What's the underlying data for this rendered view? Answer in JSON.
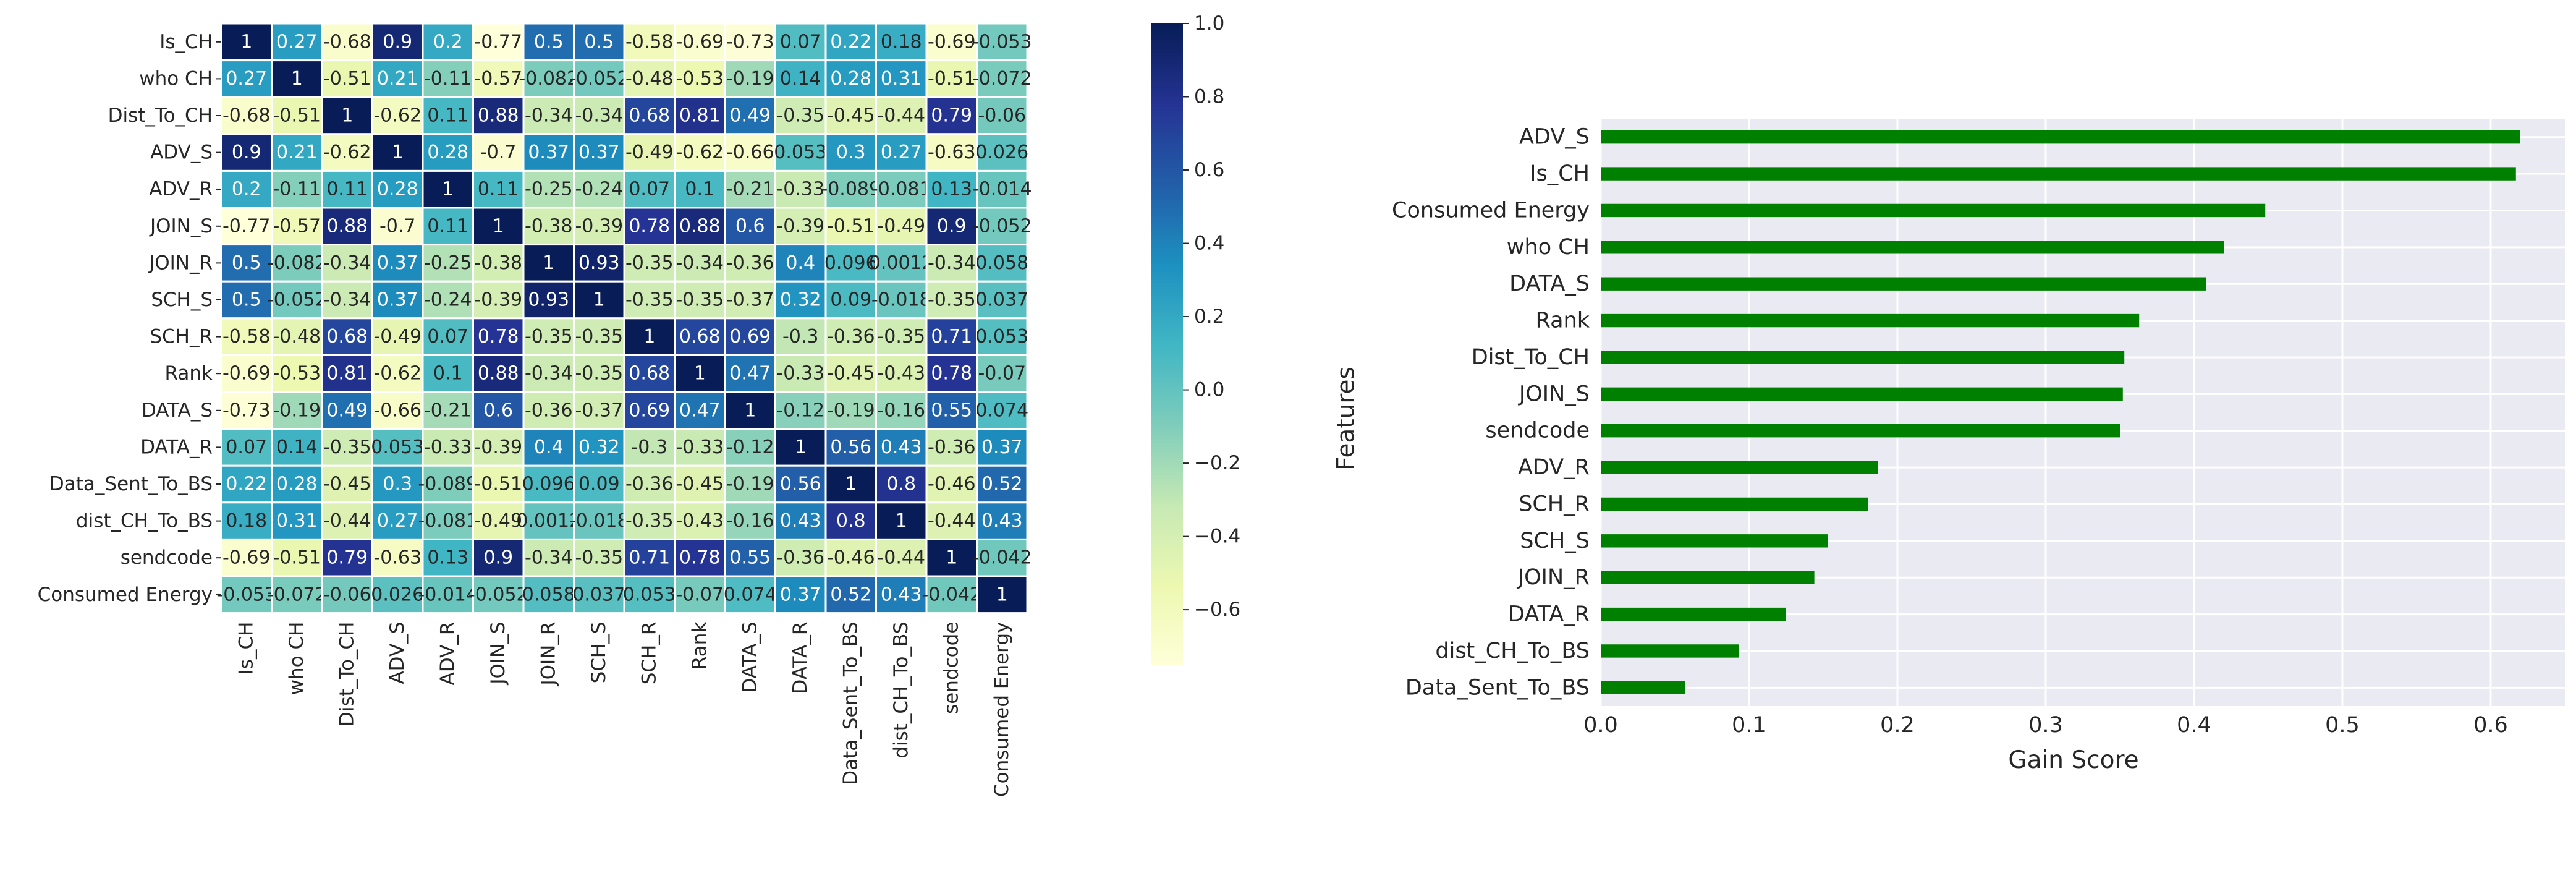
{
  "chart_data": [
    {
      "type": "heatmap",
      "title": "",
      "colormap": "YlGnBu",
      "labels": [
        "Is_CH",
        "who CH",
        "Dist_To_CH",
        "ADV_S",
        "ADV_R",
        "JOIN_S",
        "JOIN_R",
        "SCH_S",
        "SCH_R",
        "Rank",
        "DATA_S",
        "DATA_R",
        "Data_Sent_To_BS",
        "dist_CH_To_BS",
        "sendcode",
        "Consumed Energy"
      ],
      "values": [
        [
          1,
          0.27,
          -0.68,
          0.9,
          0.2,
          -0.77,
          0.5,
          0.5,
          -0.58,
          -0.69,
          -0.73,
          0.07,
          0.22,
          0.18,
          -0.69,
          -0.053
        ],
        [
          0.27,
          1,
          -0.51,
          0.21,
          -0.11,
          -0.57,
          -0.082,
          -0.052,
          -0.48,
          -0.53,
          -0.19,
          0.14,
          0.28,
          0.31,
          -0.51,
          -0.072
        ],
        [
          -0.68,
          -0.51,
          1,
          -0.62,
          0.11,
          0.88,
          -0.34,
          -0.34,
          0.68,
          0.81,
          0.49,
          -0.35,
          -0.45,
          -0.44,
          0.79,
          -0.06
        ],
        [
          0.9,
          0.21,
          -0.62,
          1,
          0.28,
          -0.7,
          0.37,
          0.37,
          -0.49,
          -0.62,
          -0.66,
          0.053,
          0.3,
          0.27,
          -0.63,
          0.026
        ],
        [
          0.2,
          -0.11,
          0.11,
          0.28,
          1,
          0.11,
          -0.25,
          -0.24,
          0.07,
          0.1,
          -0.21,
          -0.33,
          -0.089,
          -0.081,
          0.13,
          -0.014
        ],
        [
          -0.77,
          -0.57,
          0.88,
          -0.7,
          0.11,
          1,
          -0.38,
          -0.39,
          0.78,
          0.88,
          0.6,
          -0.39,
          -0.51,
          -0.49,
          0.9,
          -0.052
        ],
        [
          0.5,
          -0.082,
          -0.34,
          0.37,
          -0.25,
          -0.38,
          1,
          0.93,
          -0.35,
          -0.34,
          -0.36,
          0.4,
          0.096,
          0.0012,
          -0.34,
          0.058
        ],
        [
          0.5,
          -0.052,
          -0.34,
          0.37,
          -0.24,
          -0.39,
          0.93,
          1,
          -0.35,
          -0.35,
          -0.37,
          0.32,
          0.09,
          -0.018,
          -0.35,
          0.037
        ],
        [
          -0.58,
          -0.48,
          0.68,
          -0.49,
          0.07,
          0.78,
          -0.35,
          -0.35,
          1,
          0.68,
          0.69,
          -0.3,
          -0.36,
          -0.35,
          0.71,
          0.053
        ],
        [
          -0.69,
          -0.53,
          0.81,
          -0.62,
          0.1,
          0.88,
          -0.34,
          -0.35,
          0.68,
          1,
          0.47,
          -0.33,
          -0.45,
          -0.43,
          0.78,
          -0.07
        ],
        [
          -0.73,
          -0.19,
          0.49,
          -0.66,
          -0.21,
          0.6,
          -0.36,
          -0.37,
          0.69,
          0.47,
          1,
          -0.12,
          -0.19,
          -0.16,
          0.55,
          0.074
        ],
        [
          0.07,
          0.14,
          -0.35,
          0.053,
          -0.33,
          -0.39,
          0.4,
          0.32,
          -0.3,
          -0.33,
          -0.12,
          1,
          0.56,
          0.43,
          -0.36,
          0.37
        ],
        [
          0.22,
          0.28,
          -0.45,
          0.3,
          -0.089,
          -0.51,
          0.096,
          0.09,
          -0.36,
          -0.45,
          -0.19,
          0.56,
          1,
          0.8,
          -0.46,
          0.52
        ],
        [
          0.18,
          0.31,
          -0.44,
          0.27,
          -0.081,
          -0.49,
          0.0012,
          -0.018,
          -0.35,
          -0.43,
          -0.16,
          0.43,
          0.8,
          1,
          -0.44,
          0.43
        ],
        [
          -0.69,
          -0.51,
          0.79,
          -0.63,
          0.13,
          0.9,
          -0.34,
          -0.35,
          0.71,
          0.78,
          0.55,
          -0.36,
          -0.46,
          -0.44,
          1,
          -0.042
        ],
        [
          -0.053,
          -0.072,
          -0.06,
          0.026,
          -0.014,
          -0.052,
          0.058,
          0.037,
          0.053,
          -0.07,
          0.074,
          0.37,
          0.52,
          0.43,
          -0.042,
          1
        ]
      ],
      "vmin": -0.75,
      "vmax": 1.0,
      "colorbar_ticks": [
        "1.0",
        "0.8",
        "0.6",
        "0.4",
        "0.2",
        "0.0",
        "−0.2",
        "−0.4",
        "−0.6"
      ],
      "colorbar_tick_values": [
        1.0,
        0.8,
        0.6,
        0.4,
        0.2,
        0.0,
        -0.2,
        -0.4,
        -0.6
      ]
    },
    {
      "type": "bar",
      "orientation": "horizontal",
      "title": "",
      "xlabel": "Gain Score",
      "ylabel": "Features",
      "categories": [
        "ADV_S",
        "Is_CH",
        "Consumed Energy",
        "who CH",
        "DATA_S",
        "Rank",
        "Dist_To_CH",
        "JOIN_S",
        "sendcode",
        "ADV_R",
        "SCH_R",
        "SCH_S",
        "JOIN_R",
        "DATA_R",
        "dist_CH_To_BS",
        "Data_Sent_To_BS"
      ],
      "values": [
        0.62,
        0.617,
        0.448,
        0.42,
        0.408,
        0.363,
        0.353,
        0.352,
        0.35,
        0.187,
        0.18,
        0.153,
        0.144,
        0.125,
        0.093,
        0.057
      ],
      "xlim": [
        0,
        0.65
      ],
      "xticks": [
        "0.0",
        "0.1",
        "0.2",
        "0.3",
        "0.4",
        "0.5",
        "0.6"
      ],
      "xtick_values": [
        0,
        0.1,
        0.2,
        0.3,
        0.4,
        0.5,
        0.6
      ],
      "bar_color": "#008000",
      "background": "#eaeaf2",
      "grid": true
    }
  ]
}
